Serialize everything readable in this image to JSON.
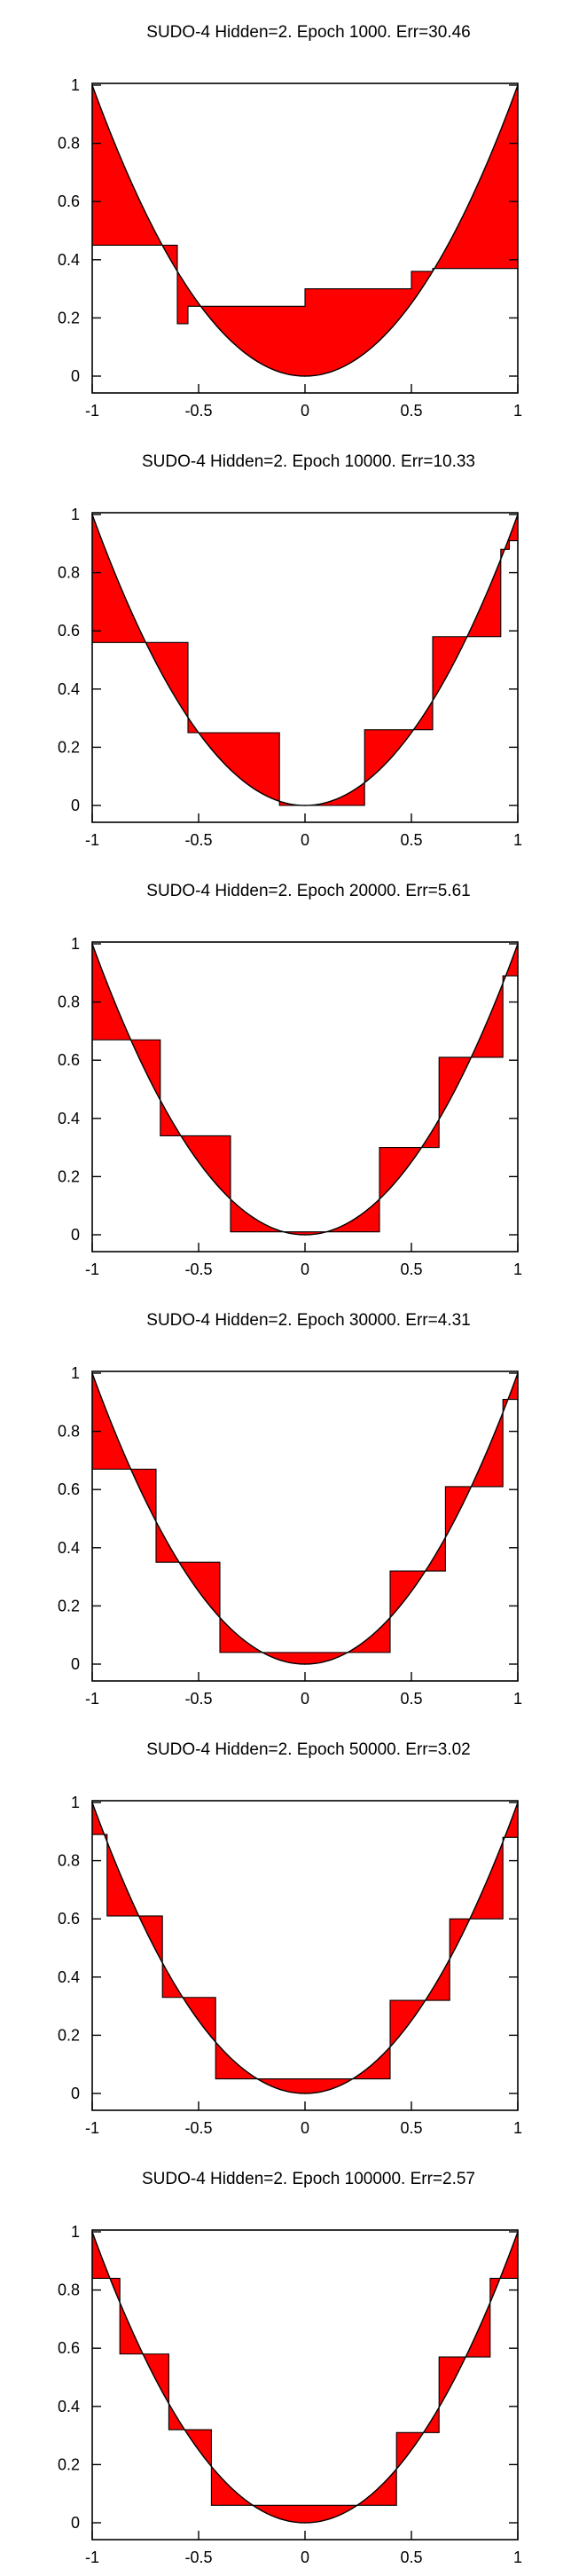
{
  "chart_data": [
    {
      "type": "area",
      "title": "SUDO-4 Hidden=2. Epoch 1000. Err=30.46",
      "xlim": [
        -1,
        1
      ],
      "ylim": [
        0,
        1
      ],
      "xticks": [
        "-1",
        "-0.5",
        "0",
        "0.5",
        "1"
      ],
      "yticks": [
        "0",
        "0.2",
        "0.4",
        "0.6",
        "0.8",
        "1"
      ],
      "fill_color": "#ff0000",
      "target_function": "y = x^2",
      "approximation": {
        "x": [
          -1,
          -0.6,
          -0.6,
          -0.55,
          -0.55,
          0,
          0,
          0.5,
          0.5,
          0.6,
          0.6,
          1
        ],
        "y": [
          0.45,
          0.45,
          0.18,
          0.18,
          0.24,
          0.24,
          0.3,
          0.3,
          0.36,
          0.36,
          0.37,
          0.37
        ]
      }
    },
    {
      "type": "area",
      "title": "SUDO-4 Hidden=2. Epoch 10000. Err=10.33",
      "xlim": [
        -1,
        1
      ],
      "ylim": [
        0,
        1
      ],
      "xticks": [
        "-1",
        "-0.5",
        "0",
        "0.5",
        "1"
      ],
      "yticks": [
        "0",
        "0.2",
        "0.4",
        "0.6",
        "0.8",
        "1"
      ],
      "fill_color": "#ff0000",
      "target_function": "y = x^2",
      "approximation": {
        "x": [
          -1,
          -0.75,
          -0.75,
          -0.55,
          -0.55,
          -0.12,
          -0.12,
          0.28,
          0.28,
          0.6,
          0.6,
          0.92,
          0.92,
          0.96,
          0.96,
          1
        ],
        "y": [
          0.56,
          0.56,
          0.56,
          0.56,
          0.25,
          0.25,
          0.0,
          0.0,
          0.26,
          0.26,
          0.58,
          0.58,
          0.88,
          0.88,
          0.91,
          0.91
        ]
      }
    },
    {
      "type": "area",
      "title": "SUDO-4 Hidden=2. Epoch 20000. Err=5.61",
      "xlim": [
        -1,
        1
      ],
      "ylim": [
        0,
        1
      ],
      "xticks": [
        "-1",
        "-0.5",
        "0",
        "0.5",
        "1"
      ],
      "yticks": [
        "0",
        "0.2",
        "0.4",
        "0.6",
        "0.8",
        "1"
      ],
      "fill_color": "#ff0000",
      "target_function": "y = x^2",
      "approximation": {
        "x": [
          -1,
          -0.82,
          -0.82,
          -0.68,
          -0.68,
          -0.35,
          -0.35,
          0.35,
          0.35,
          0.63,
          0.63,
          0.93,
          0.93,
          1
        ],
        "y": [
          0.67,
          0.67,
          0.67,
          0.67,
          0.34,
          0.34,
          0.01,
          0.01,
          0.3,
          0.3,
          0.61,
          0.61,
          0.89,
          0.89
        ]
      }
    },
    {
      "type": "area",
      "title": "SUDO-4 Hidden=2. Epoch 30000. Err=4.31",
      "xlim": [
        -1,
        1
      ],
      "ylim": [
        0,
        1
      ],
      "xticks": [
        "-1",
        "-0.5",
        "0",
        "0.5",
        "1"
      ],
      "yticks": [
        "0",
        "0.2",
        "0.4",
        "0.6",
        "0.8",
        "1"
      ],
      "fill_color": "#ff0000",
      "target_function": "y = x^2",
      "approximation": {
        "x": [
          -1,
          -0.83,
          -0.83,
          -0.7,
          -0.7,
          -0.4,
          -0.4,
          0.4,
          0.4,
          0.66,
          0.66,
          0.93,
          0.93,
          1
        ],
        "y": [
          0.67,
          0.67,
          0.67,
          0.67,
          0.35,
          0.35,
          0.04,
          0.04,
          0.32,
          0.32,
          0.61,
          0.61,
          0.91,
          0.91
        ]
      }
    },
    {
      "type": "area",
      "title": "SUDO-4 Hidden=2. Epoch 50000. Err=3.02",
      "xlim": [
        -1,
        1
      ],
      "ylim": [
        0,
        1
      ],
      "xticks": [
        "-1",
        "-0.5",
        "0",
        "0.5",
        "1"
      ],
      "yticks": [
        "0",
        "0.2",
        "0.4",
        "0.6",
        "0.8",
        "1"
      ],
      "fill_color": "#ff0000",
      "target_function": "y = x^2",
      "approximation": {
        "x": [
          -1,
          -0.93,
          -0.93,
          -0.67,
          -0.67,
          -0.42,
          -0.42,
          0.4,
          0.4,
          0.68,
          0.68,
          0.93,
          0.93,
          1
        ],
        "y": [
          0.89,
          0.89,
          0.61,
          0.61,
          0.33,
          0.33,
          0.05,
          0.05,
          0.32,
          0.32,
          0.6,
          0.6,
          0.88,
          0.88
        ]
      }
    },
    {
      "type": "area",
      "title": "SUDO-4 Hidden=2. Epoch 100000. Err=2.57",
      "xlim": [
        -1,
        1
      ],
      "ylim": [
        0,
        1
      ],
      "xticks": [
        "-1",
        "-0.5",
        "0",
        "0.5",
        "1"
      ],
      "yticks": [
        "0",
        "0.2",
        "0.4",
        "0.6",
        "0.8",
        "1"
      ],
      "fill_color": "#ff0000",
      "target_function": "y = x^2",
      "approximation": {
        "x": [
          -1,
          -0.87,
          -0.87,
          -0.64,
          -0.64,
          -0.44,
          -0.44,
          0.43,
          0.43,
          0.63,
          0.63,
          0.87,
          0.87,
          1
        ],
        "y": [
          0.84,
          0.84,
          0.58,
          0.58,
          0.32,
          0.32,
          0.06,
          0.06,
          0.31,
          0.31,
          0.57,
          0.57,
          0.84,
          0.84
        ]
      }
    }
  ]
}
